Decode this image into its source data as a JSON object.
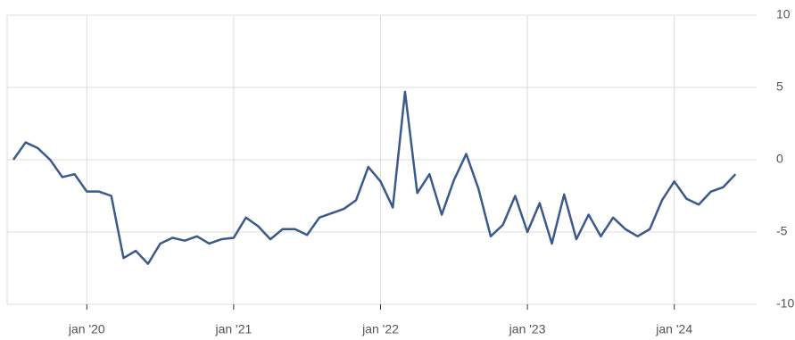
{
  "chart_data": {
    "type": "line",
    "x": [
      "2019-07",
      "2019-08",
      "2019-09",
      "2019-10",
      "2019-11",
      "2019-12",
      "2020-01",
      "2020-02",
      "2020-03",
      "2020-04",
      "2020-05",
      "2020-06",
      "2020-07",
      "2020-08",
      "2020-09",
      "2020-10",
      "2020-11",
      "2020-12",
      "2021-01",
      "2021-02",
      "2021-03",
      "2021-04",
      "2021-05",
      "2021-06",
      "2021-07",
      "2021-08",
      "2021-09",
      "2021-10",
      "2021-11",
      "2021-12",
      "2022-01",
      "2022-02",
      "2022-03",
      "2022-04",
      "2022-05",
      "2022-06",
      "2022-07",
      "2022-08",
      "2022-09",
      "2022-10",
      "2022-11",
      "2022-12",
      "2023-01",
      "2023-02",
      "2023-03",
      "2023-04",
      "2023-05",
      "2023-06",
      "2023-07",
      "2023-08",
      "2023-09",
      "2023-10",
      "2023-11",
      "2023-12",
      "2024-01",
      "2024-02",
      "2024-03",
      "2024-04",
      "2024-05",
      "2024-06"
    ],
    "series": [
      {
        "color": "#3a5a8c",
        "values": [
          0,
          1.2,
          0.8,
          0,
          -1.2,
          -1.0,
          -2.2,
          -2.2,
          -2.5,
          -6.8,
          -6.3,
          -7.2,
          -5.8,
          -5.4,
          -5.6,
          -5.3,
          -5.8,
          -5.5,
          -5.4,
          -4.0,
          -4.6,
          -5.5,
          -4.8,
          -4.8,
          -5.2,
          -4.0,
          -3.7,
          -3.4,
          -2.8,
          -0.5,
          -1.5,
          -3.3,
          4.7,
          -2.3,
          -1.0,
          -3.8,
          -1.4,
          0.4,
          -2.0,
          -5.3,
          -4.5,
          -2.5,
          -5.0,
          -3.0,
          -5.8,
          -2.4,
          -5.5,
          -3.8,
          -5.3,
          -4.0,
          -4.8,
          -5.3,
          -4.8,
          -2.8,
          -1.5,
          -2.7,
          -3.1,
          -2.2,
          -1.9,
          -1.0
        ]
      }
    ],
    "xlim": [
      "2019-07",
      "2024-07"
    ],
    "xticks": [
      {
        "value": "2020-01",
        "label": "jan '20"
      },
      {
        "value": "2021-01",
        "label": "jan '21"
      },
      {
        "value": "2022-01",
        "label": "jan '22"
      },
      {
        "value": "2023-01",
        "label": "jan '23"
      },
      {
        "value": "2024-01",
        "label": "jan '24"
      }
    ],
    "ylim": [
      -10,
      10
    ],
    "yticks": [
      10,
      5,
      0,
      -5,
      -10
    ],
    "grid": true
  }
}
